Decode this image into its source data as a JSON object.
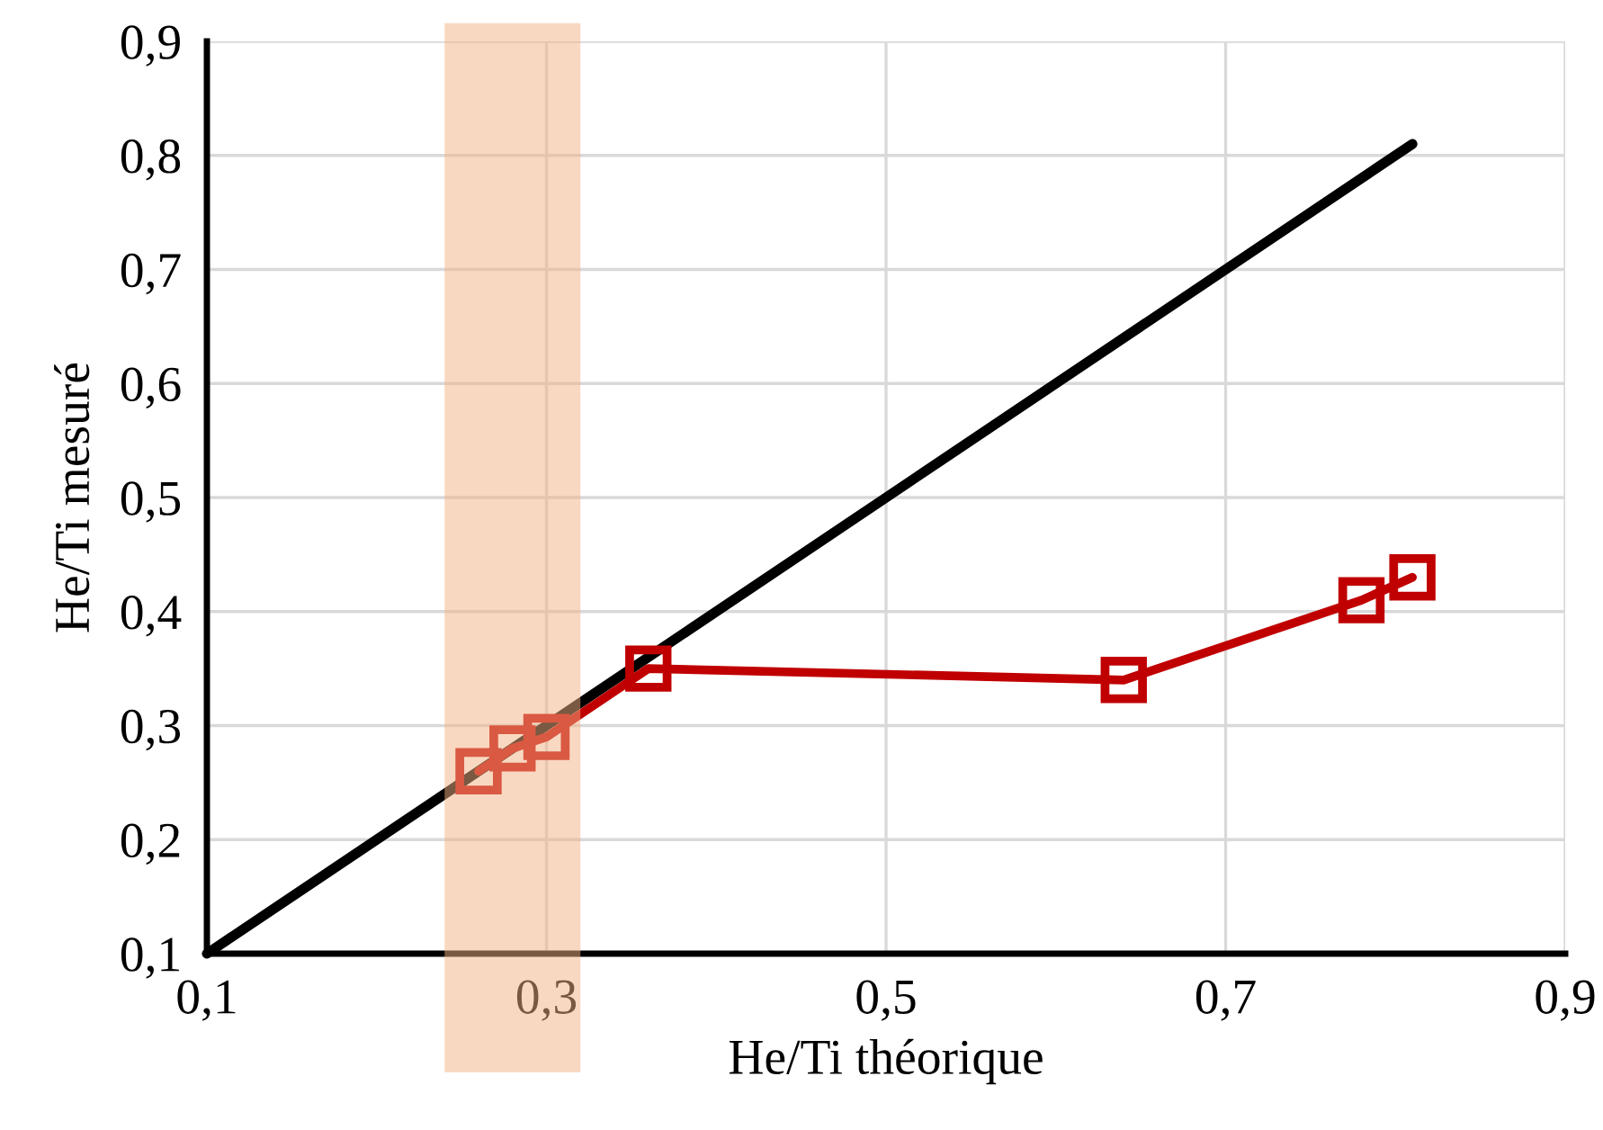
{
  "chart_data": {
    "type": "line",
    "xlabel": "He/Ti théorique",
    "ylabel": "He/Ti mesuré",
    "xlim": [
      0.1,
      0.9
    ],
    "ylim": [
      0.1,
      0.9
    ],
    "xticks": [
      {
        "value": 0.1,
        "label": "0,1"
      },
      {
        "value": 0.3,
        "label": "0,3"
      },
      {
        "value": 0.5,
        "label": "0,5"
      },
      {
        "value": 0.7,
        "label": "0,7"
      },
      {
        "value": 0.9,
        "label": "0,9"
      }
    ],
    "yticks": [
      {
        "value": 0.1,
        "label": "0,1"
      },
      {
        "value": 0.2,
        "label": "0,2"
      },
      {
        "value": 0.3,
        "label": "0,3"
      },
      {
        "value": 0.4,
        "label": "0,4"
      },
      {
        "value": 0.5,
        "label": "0,5"
      },
      {
        "value": 0.6,
        "label": "0,6"
      },
      {
        "value": 0.7,
        "label": "0,7"
      },
      {
        "value": 0.8,
        "label": "0,8"
      },
      {
        "value": 0.9,
        "label": "0,9"
      }
    ],
    "grid": true,
    "legend": false,
    "series": [
      {
        "color": "#000000",
        "x": [
          0.1,
          0.81
        ],
        "values": [
          0.1,
          0.81
        ],
        "marker": "none"
      },
      {
        "color": "#c00000",
        "x": [
          0.26,
          0.28,
          0.3,
          0.36,
          0.64,
          0.78,
          0.81
        ],
        "values": [
          0.26,
          0.28,
          0.29,
          0.35,
          0.34,
          0.41,
          0.43
        ],
        "marker": "square"
      }
    ],
    "bands": [
      {
        "axis": "x",
        "from": 0.24,
        "to": 0.32,
        "color": "#f4b183"
      }
    ]
  }
}
